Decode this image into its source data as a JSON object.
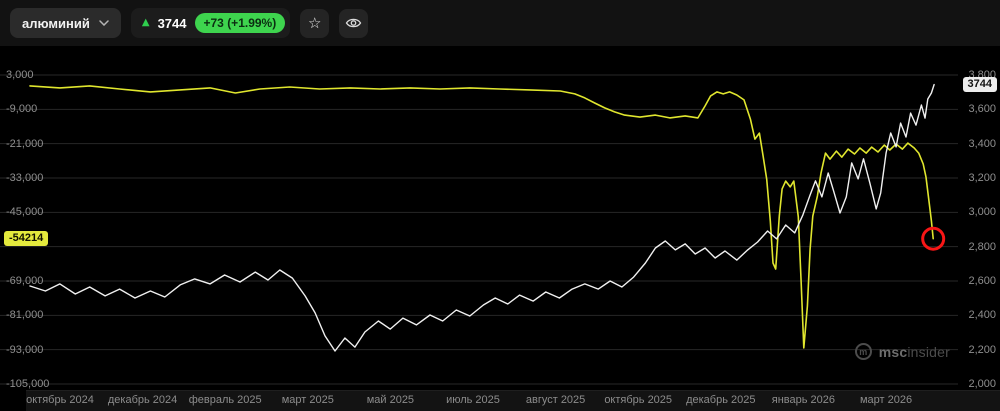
{
  "toolbar": {
    "instrument": "алюминий",
    "last_price": "3744",
    "change": "+73 (+1.99%)",
    "colors": {
      "trend_up": "#2fce4e",
      "change_badge_bg": "#3ed44e"
    }
  },
  "watermark": {
    "bold": "msc",
    "rest": "insider"
  },
  "chart_data": {
    "type": "line",
    "grid_rows": 10,
    "price_badge": "3744",
    "indicator_badge": "-54214",
    "left_axis": {
      "min": -105000,
      "max": 3000,
      "labels": [
        "3,000",
        "-9,000",
        "-21,000",
        "-33,000",
        "-45,000",
        null,
        "-69,000",
        "-81,000",
        "-93,000",
        "-105,000"
      ]
    },
    "right_axis": {
      "min": 2000,
      "max": 3800,
      "labels": [
        "3,800",
        "3,600",
        "3,400",
        "3,200",
        "3,000",
        "2,800",
        "2,600",
        "2,400",
        "2,200",
        "2,000"
      ]
    },
    "x_axis": {
      "labels": [
        "октябрь 2024",
        "декабрь 2024",
        "февраль 2025",
        "март 2025",
        "май 2025",
        "июль 2025",
        "август 2025",
        "октябрь 2025",
        "декабрь 2025",
        "январь 2026",
        "март 2026"
      ]
    },
    "annotation": {
      "shape": "circle",
      "axis": "left_axis",
      "t": 0.998,
      "value": -54214,
      "color": "#f81616",
      "radius": 10.5
    },
    "series": [
      {
        "name": "indicator-line",
        "color": "#e0e62e",
        "width": 1.6,
        "axis": "left_axis",
        "points": [
          [
            0,
            -800
          ],
          [
            0.033,
            -1500
          ],
          [
            0.066,
            -800
          ],
          [
            0.099,
            -1900
          ],
          [
            0.133,
            -2900
          ],
          [
            0.166,
            -2200
          ],
          [
            0.199,
            -1500
          ],
          [
            0.227,
            -3300
          ],
          [
            0.254,
            -1900
          ],
          [
            0.287,
            -1200
          ],
          [
            0.32,
            -1900
          ],
          [
            0.354,
            -1500
          ],
          [
            0.387,
            -1900
          ],
          [
            0.42,
            -1500
          ],
          [
            0.453,
            -1900
          ],
          [
            0.486,
            -1500
          ],
          [
            0.519,
            -1900
          ],
          [
            0.552,
            -2200
          ],
          [
            0.586,
            -2600
          ],
          [
            0.602,
            -3600
          ],
          [
            0.613,
            -5000
          ],
          [
            0.624,
            -6800
          ],
          [
            0.635,
            -8500
          ],
          [
            0.646,
            -9900
          ],
          [
            0.657,
            -11000
          ],
          [
            0.674,
            -11700
          ],
          [
            0.691,
            -11000
          ],
          [
            0.707,
            -12000
          ],
          [
            0.724,
            -11300
          ],
          [
            0.738,
            -12000
          ],
          [
            0.746,
            -7800
          ],
          [
            0.752,
            -4300
          ],
          [
            0.759,
            -2900
          ],
          [
            0.766,
            -3600
          ],
          [
            0.773,
            -2900
          ],
          [
            0.781,
            -4000
          ],
          [
            0.789,
            -5700
          ],
          [
            0.796,
            -12400
          ],
          [
            0.801,
            -19400
          ],
          [
            0.806,
            -17300
          ],
          [
            0.81,
            -25300
          ],
          [
            0.814,
            -33400
          ],
          [
            0.818,
            -48000
          ],
          [
            0.821,
            -62700
          ],
          [
            0.824,
            -64800
          ],
          [
            0.828,
            -46300
          ],
          [
            0.831,
            -36800
          ],
          [
            0.835,
            -34100
          ],
          [
            0.84,
            -36100
          ],
          [
            0.844,
            -34100
          ],
          [
            0.849,
            -46600
          ],
          [
            0.852,
            -69000
          ],
          [
            0.855,
            -92400
          ],
          [
            0.859,
            -77700
          ],
          [
            0.862,
            -57800
          ],
          [
            0.865,
            -46300
          ],
          [
            0.87,
            -39300
          ],
          [
            0.874,
            -31300
          ],
          [
            0.879,
            -24300
          ],
          [
            0.884,
            -26400
          ],
          [
            0.891,
            -23600
          ],
          [
            0.897,
            -25700
          ],
          [
            0.904,
            -22900
          ],
          [
            0.911,
            -24600
          ],
          [
            0.917,
            -22500
          ],
          [
            0.924,
            -24300
          ],
          [
            0.93,
            -22200
          ],
          [
            0.937,
            -23900
          ],
          [
            0.944,
            -21500
          ],
          [
            0.95,
            -23200
          ],
          [
            0.957,
            -21100
          ],
          [
            0.964,
            -22900
          ],
          [
            0.97,
            -20800
          ],
          [
            0.977,
            -22500
          ],
          [
            0.982,
            -24300
          ],
          [
            0.987,
            -28100
          ],
          [
            0.99,
            -32700
          ],
          [
            0.993,
            -40300
          ],
          [
            0.996,
            -48000
          ],
          [
            0.998,
            -54214
          ]
        ]
      },
      {
        "name": "price-line",
        "color": "#f0f0f0",
        "width": 1.4,
        "axis": "right_axis",
        "points": [
          [
            0,
            2571
          ],
          [
            0.017,
            2542
          ],
          [
            0.033,
            2583
          ],
          [
            0.05,
            2524
          ],
          [
            0.066,
            2565
          ],
          [
            0.083,
            2513
          ],
          [
            0.099,
            2553
          ],
          [
            0.116,
            2501
          ],
          [
            0.133,
            2542
          ],
          [
            0.149,
            2507
          ],
          [
            0.166,
            2577
          ],
          [
            0.182,
            2612
          ],
          [
            0.199,
            2583
          ],
          [
            0.215,
            2635
          ],
          [
            0.232,
            2594
          ],
          [
            0.249,
            2652
          ],
          [
            0.263,
            2606
          ],
          [
            0.276,
            2664
          ],
          [
            0.29,
            2617
          ],
          [
            0.304,
            2513
          ],
          [
            0.315,
            2414
          ],
          [
            0.326,
            2280
          ],
          [
            0.337,
            2192
          ],
          [
            0.348,
            2268
          ],
          [
            0.359,
            2215
          ],
          [
            0.37,
            2303
          ],
          [
            0.385,
            2367
          ],
          [
            0.398,
            2320
          ],
          [
            0.412,
            2384
          ],
          [
            0.427,
            2344
          ],
          [
            0.442,
            2402
          ],
          [
            0.456,
            2367
          ],
          [
            0.471,
            2431
          ],
          [
            0.486,
            2396
          ],
          [
            0.501,
            2460
          ],
          [
            0.514,
            2501
          ],
          [
            0.528,
            2466
          ],
          [
            0.541,
            2518
          ],
          [
            0.556,
            2483
          ],
          [
            0.57,
            2536
          ],
          [
            0.585,
            2501
          ],
          [
            0.599,
            2553
          ],
          [
            0.613,
            2583
          ],
          [
            0.628,
            2553
          ],
          [
            0.641,
            2600
          ],
          [
            0.654,
            2565
          ],
          [
            0.667,
            2623
          ],
          [
            0.68,
            2705
          ],
          [
            0.691,
            2792
          ],
          [
            0.702,
            2833
          ],
          [
            0.713,
            2781
          ],
          [
            0.724,
            2816
          ],
          [
            0.735,
            2757
          ],
          [
            0.746,
            2792
          ],
          [
            0.757,
            2734
          ],
          [
            0.768,
            2775
          ],
          [
            0.781,
            2722
          ],
          [
            0.793,
            2781
          ],
          [
            0.804,
            2827
          ],
          [
            0.815,
            2891
          ],
          [
            0.825,
            2845
          ],
          [
            0.835,
            2926
          ],
          [
            0.845,
            2880
          ],
          [
            0.854,
            2985
          ],
          [
            0.862,
            3101
          ],
          [
            0.868,
            3183
          ],
          [
            0.875,
            3090
          ],
          [
            0.882,
            3229
          ],
          [
            0.888,
            3125
          ],
          [
            0.895,
            2996
          ],
          [
            0.902,
            3090
          ],
          [
            0.908,
            3288
          ],
          [
            0.915,
            3195
          ],
          [
            0.921,
            3312
          ],
          [
            0.928,
            3172
          ],
          [
            0.935,
            3020
          ],
          [
            0.94,
            3113
          ],
          [
            0.946,
            3346
          ],
          [
            0.951,
            3462
          ],
          [
            0.957,
            3381
          ],
          [
            0.962,
            3520
          ],
          [
            0.968,
            3439
          ],
          [
            0.973,
            3578
          ],
          [
            0.979,
            3508
          ],
          [
            0.985,
            3625
          ],
          [
            0.989,
            3549
          ],
          [
            0.992,
            3660
          ],
          [
            0.996,
            3695
          ],
          [
            0.999,
            3744
          ]
        ]
      }
    ]
  }
}
